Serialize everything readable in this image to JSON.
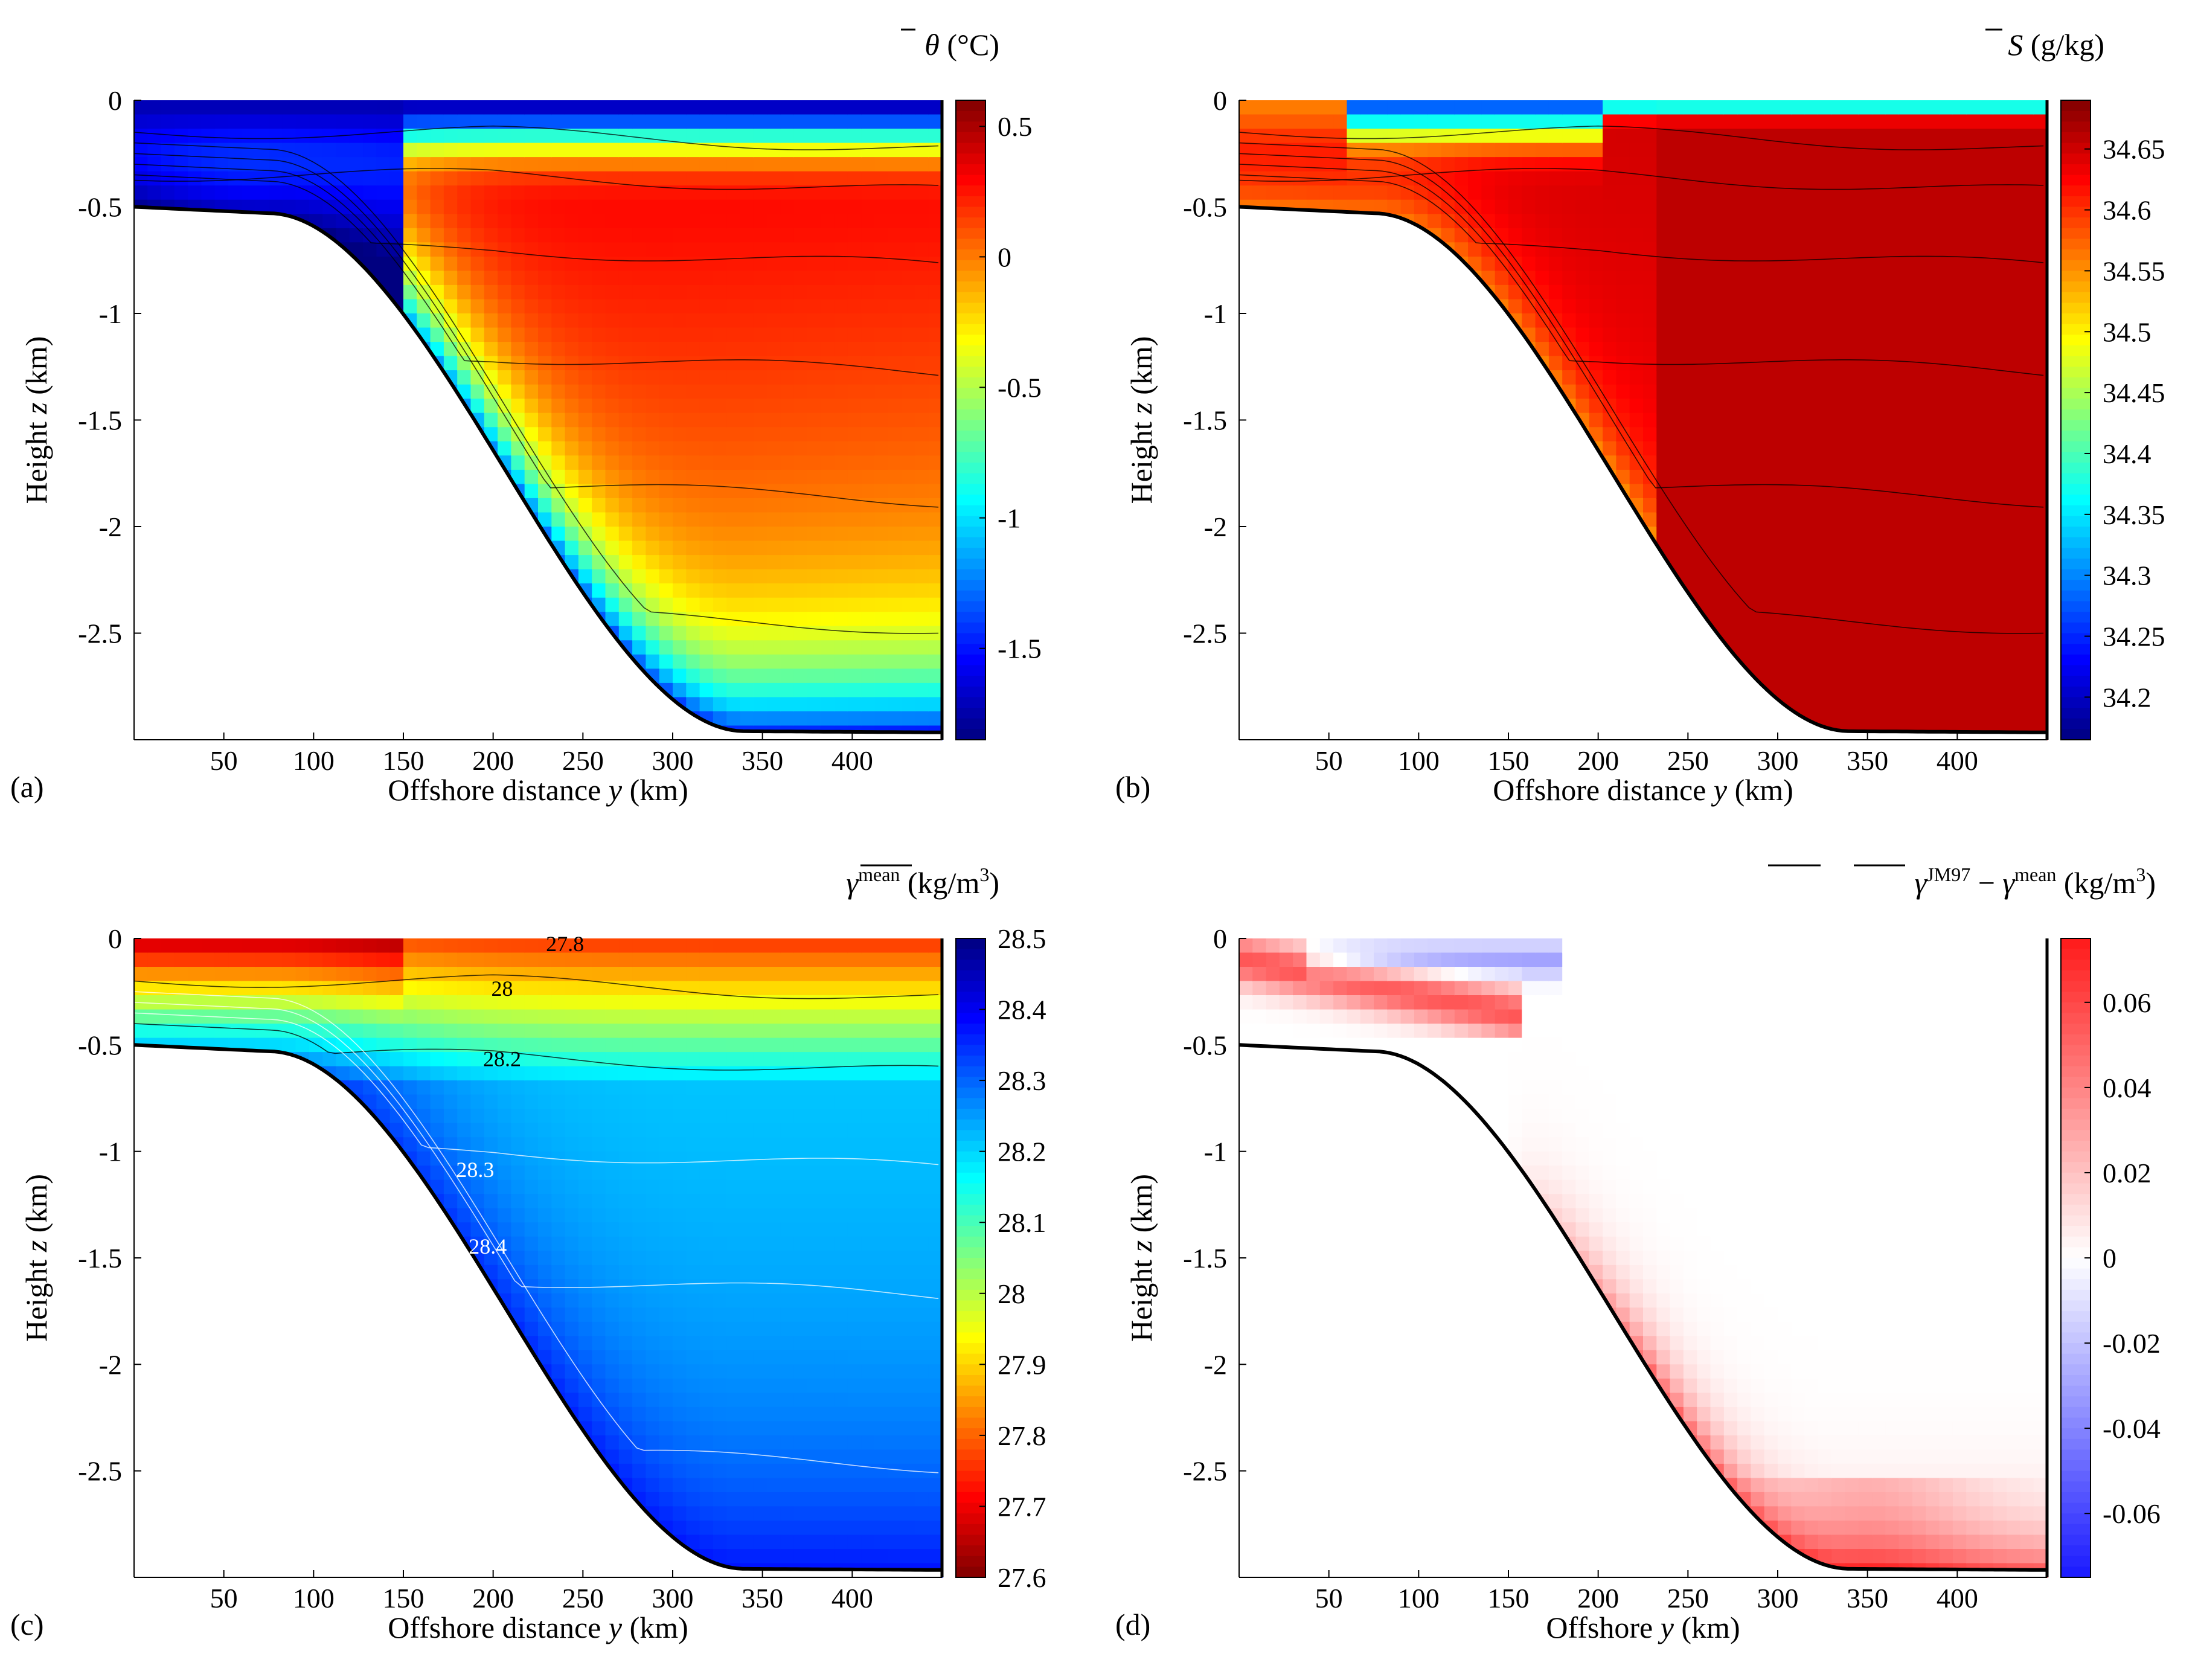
{
  "figure": {
    "domain_note": "Four-panel oceanographic cross-section figure",
    "y_axis_label": "Height z (km)",
    "x_label_default": "Offshore distance y (km)",
    "x_label_d": "Offshore y (km)"
  },
  "chart_data": [
    {
      "type": "heatmap",
      "panel": "(a)",
      "title": "θ̄ (°C)",
      "colormap": "jet",
      "xlabel": "Offshore distance y (km)",
      "ylabel": "Height z (km)",
      "xlim": [
        0,
        450
      ],
      "ylim": [
        -3.0,
        0.0
      ],
      "x_ticks": [
        "50",
        "100",
        "150",
        "200",
        "250",
        "300",
        "350",
        "400"
      ],
      "y_ticks": [
        "0",
        "-0.5",
        "-1",
        "-1.5",
        "-2",
        "-2.5"
      ],
      "clim": [
        -1.85,
        0.6
      ],
      "colorbar_ticks": [
        "0.5",
        "0",
        "-0.5",
        "-1",
        "-1.5"
      ],
      "contour_labels": []
    },
    {
      "type": "heatmap",
      "panel": "(b)",
      "title": "S̄ (g/kg)",
      "colormap": "jet",
      "xlabel": "Offshore distance y (km)",
      "ylabel": "Height z (km)",
      "xlim": [
        0,
        450
      ],
      "ylim": [
        -3.0,
        0.0
      ],
      "x_ticks": [
        "50",
        "100",
        "150",
        "200",
        "250",
        "300",
        "350",
        "400"
      ],
      "y_ticks": [
        "0",
        "-0.5",
        "-1",
        "-1.5",
        "-2",
        "-2.5"
      ],
      "clim": [
        34.165,
        34.69
      ],
      "colorbar_ticks": [
        "34.65",
        "34.6",
        "34.55",
        "34.5",
        "34.45",
        "34.4",
        "34.35",
        "34.3",
        "34.25",
        "34.2"
      ],
      "contour_labels": []
    },
    {
      "type": "heatmap",
      "panel": "(c)",
      "title": "γ̄ mean (kg/m³)",
      "colormap": "jet (reversed)",
      "xlabel": "Offshore distance y (km)",
      "ylabel": "Height z (km)",
      "xlim": [
        0,
        450
      ],
      "ylim": [
        -3.0,
        0.0
      ],
      "x_ticks": [
        "50",
        "100",
        "150",
        "200",
        "250",
        "300",
        "350",
        "400"
      ],
      "y_ticks": [
        "0",
        "-0.5",
        "-1",
        "-1.5",
        "-2",
        "-2.5"
      ],
      "clim": [
        27.6,
        28.5
      ],
      "colorbar_ticks": [
        "28.5",
        "28.4",
        "28.3",
        "28.2",
        "28.1",
        "28",
        "27.9",
        "27.8",
        "27.7",
        "27.6"
      ],
      "contour_labels": [
        {
          "text": "27.8",
          "y_km": 240,
          "z_km": -0.06,
          "color": "#000000"
        },
        {
          "text": "28",
          "y_km": 205,
          "z_km": -0.27,
          "color": "#000000"
        },
        {
          "text": "28.2",
          "y_km": 205,
          "z_km": -0.6,
          "color": "#000000"
        },
        {
          "text": "28.3",
          "y_km": 190,
          "z_km": -1.12,
          "color": "#ffffff"
        },
        {
          "text": "28.4",
          "y_km": 197,
          "z_km": -1.48,
          "color": "#ffffff"
        }
      ]
    },
    {
      "type": "heatmap",
      "panel": "(d)",
      "title": "γ̄ JM97 − γ̄ mean (kg/m³)",
      "colormap": "blue-white-red",
      "xlabel": "Offshore y (km)",
      "ylabel": "Height z (km)",
      "xlim": [
        0,
        450
      ],
      "ylim": [
        -3.0,
        0.0
      ],
      "x_ticks": [
        "50",
        "100",
        "150",
        "200",
        "250",
        "300",
        "350",
        "400"
      ],
      "y_ticks": [
        "0",
        "-0.5",
        "-1",
        "-1.5",
        "-2",
        "-2.5"
      ],
      "clim": [
        -0.075,
        0.075
      ],
      "colorbar_ticks": [
        "0.06",
        "0.04",
        "0.02",
        "0",
        "-0.02",
        "-0.04",
        "-0.06"
      ],
      "contour_labels": []
    }
  ]
}
